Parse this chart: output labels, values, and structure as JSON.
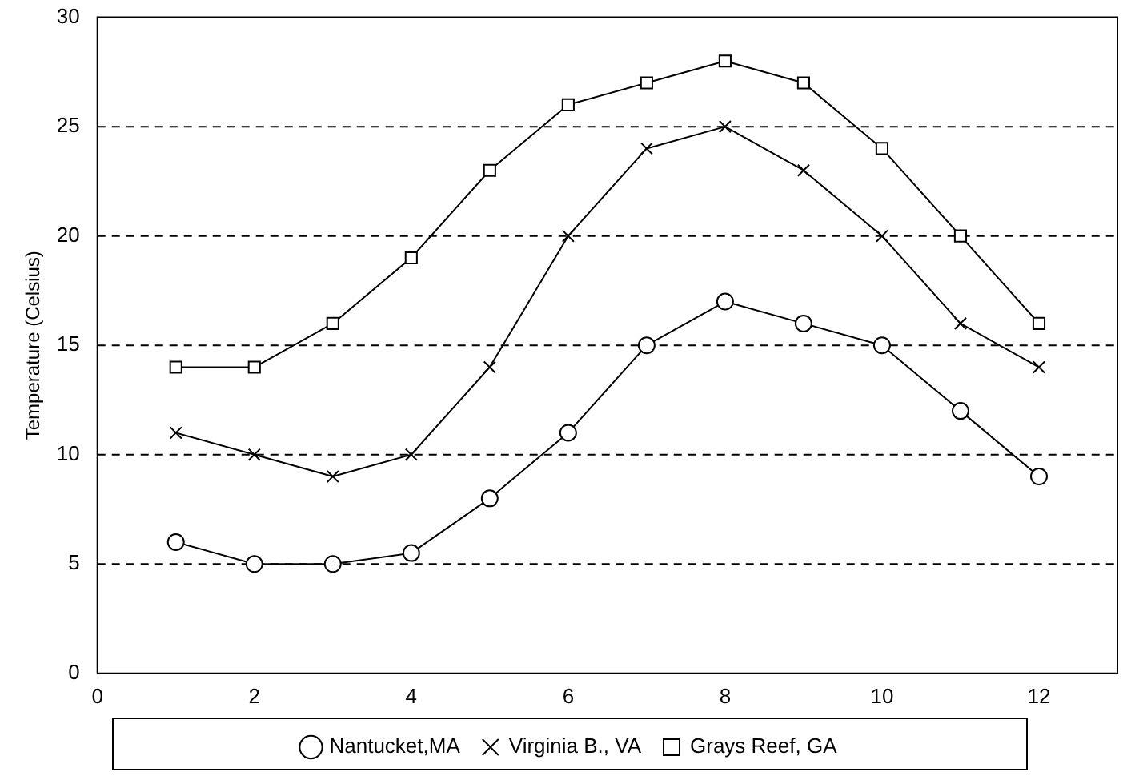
{
  "chart_data": {
    "type": "line",
    "ylabel": "Temperature (Celsius)",
    "x": [
      1,
      2,
      3,
      4,
      5,
      6,
      7,
      8,
      9,
      10,
      11,
      12
    ],
    "series": [
      {
        "name": "Nantucket,MA",
        "color": "#000000",
        "marker": "circle",
        "values": [
          6,
          5,
          5,
          5.5,
          8,
          11,
          15,
          17,
          16,
          15,
          12,
          9
        ]
      },
      {
        "name": "Virginia B., VA",
        "color": "#000000",
        "marker": "cross",
        "values": [
          11,
          10,
          9,
          10,
          14,
          20,
          24,
          25,
          23,
          20,
          16,
          14
        ]
      },
      {
        "name": "Grays Reef, GA",
        "color": "#000000",
        "marker": "square",
        "values": [
          14,
          14,
          16,
          19,
          23,
          26,
          27,
          28,
          27,
          24,
          20,
          16
        ]
      }
    ],
    "xlim": [
      0,
      13
    ],
    "xticks": [
      0,
      2,
      4,
      6,
      8,
      10,
      12
    ],
    "ylim": [
      0,
      30
    ],
    "yticks": [
      0,
      5,
      10,
      15,
      20,
      25,
      30
    ],
    "grid": "y",
    "legend": "bottom",
    "line_style": "solid"
  }
}
